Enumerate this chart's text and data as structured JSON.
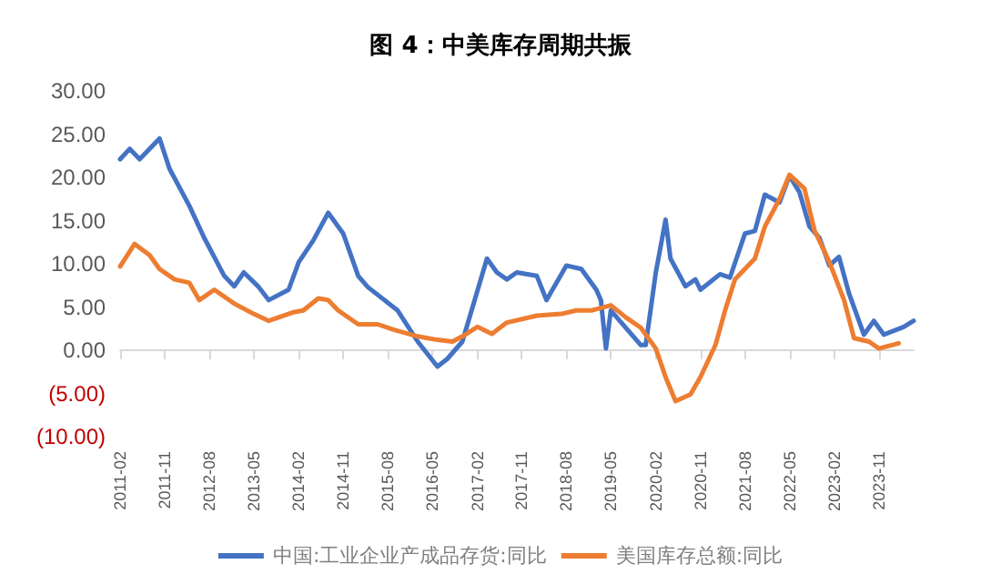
{
  "chart_data": {
    "type": "line",
    "title": "图 4：中美库存周期共振",
    "series": [
      {
        "name": "中国:工业企业产成品存货:同比",
        "color": "#4472c4",
        "x": [
          "2011-02",
          "2011-04",
          "2011-06",
          "2011-10",
          "2011-12",
          "2012-04",
          "2012-07",
          "2012-11",
          "2013-01",
          "2013-03",
          "2013-06",
          "2013-08",
          "2013-12",
          "2014-02",
          "2014-05",
          "2014-08",
          "2014-11",
          "2015-02",
          "2015-04",
          "2015-10",
          "2016-02",
          "2016-06",
          "2016-08",
          "2016-11",
          "2017-04",
          "2017-06",
          "2017-08",
          "2017-10",
          "2018-02",
          "2018-04",
          "2018-08",
          "2018-11",
          "2019-02",
          "2019-03",
          "2019-04",
          "2019-05",
          "2019-08",
          "2019-11",
          "2019-12",
          "2020-02",
          "2020-04",
          "2020-05",
          "2020-08",
          "2020-10",
          "2020-11",
          "2021-03",
          "2021-05",
          "2021-08",
          "2021-10",
          "2021-12",
          "2022-03",
          "2022-05",
          "2022-07",
          "2022-09",
          "2022-11",
          "2023-01",
          "2023-03",
          "2023-05",
          "2023-08",
          "2023-10",
          "2023-12",
          "2024-04",
          "2024-06"
        ],
        "values": [
          22.1,
          23.3,
          22.1,
          24.5,
          21,
          16.7,
          13,
          8.6,
          7.4,
          9,
          7.3,
          5.8,
          7,
          10.2,
          12.7,
          15.9,
          13.5,
          8.6,
          7.3,
          4.6,
          1,
          -1.9,
          -1,
          1,
          10.6,
          9,
          8.2,
          9,
          8.6,
          5.8,
          9.8,
          9.4,
          7,
          5.8,
          0.2,
          4.6,
          2.6,
          0.6,
          0.6,
          9,
          15.1,
          10.6,
          7.4,
          8.2,
          7,
          8.8,
          8.4,
          13.5,
          13.8,
          18,
          17.1,
          20.2,
          18.3,
          14.3,
          13,
          9.8,
          10.8,
          6.6,
          1.8,
          3.4,
          1.8,
          2.7,
          3.4
        ]
      },
      {
        "name": "美国库存总额:同比",
        "color": "#ed7d31",
        "x": [
          "2011-02",
          "2011-05",
          "2011-08",
          "2011-10",
          "2012-01",
          "2012-04",
          "2012-06",
          "2012-09",
          "2013-01",
          "2013-05",
          "2013-08",
          "2013-10",
          "2014-01",
          "2014-03",
          "2014-06",
          "2014-08",
          "2014-10",
          "2015-02",
          "2015-06",
          "2015-09",
          "2016-02",
          "2016-06",
          "2016-09",
          "2016-11",
          "2017-02",
          "2017-05",
          "2017-08",
          "2018-02",
          "2018-07",
          "2018-10",
          "2019-01",
          "2019-05",
          "2019-08",
          "2019-11",
          "2020-02",
          "2020-04",
          "2020-06",
          "2020-09",
          "2020-11",
          "2021-02",
          "2021-04",
          "2021-06",
          "2021-10",
          "2021-12",
          "2022-03",
          "2022-05",
          "2022-08",
          "2022-10",
          "2023-01",
          "2023-04",
          "2023-06",
          "2023-09",
          "2023-11",
          "2024-03"
        ],
        "values": [
          9.7,
          12.3,
          11,
          9.4,
          8.2,
          7.8,
          5.8,
          7,
          5.4,
          4.2,
          3.4,
          3.8,
          4.4,
          4.6,
          6,
          5.8,
          4.6,
          3,
          3,
          2.4,
          1.6,
          1.2,
          1,
          1.6,
          2.7,
          1.9,
          3.2,
          4,
          4.2,
          4.6,
          4.6,
          5.2,
          3.8,
          2.6,
          0.2,
          -3.1,
          -5.9,
          -5.1,
          -3.1,
          0.6,
          4.6,
          8.2,
          10.6,
          14.3,
          17.5,
          20.3,
          18.7,
          13.9,
          10.2,
          5.8,
          1.4,
          1,
          0.2,
          0.8
        ]
      }
    ],
    "xlim": [
      "2011-02",
      "2024-06"
    ],
    "xticks": [
      "2011-02",
      "2011-11",
      "2012-08",
      "2013-05",
      "2014-02",
      "2014-11",
      "2015-08",
      "2016-05",
      "2017-02",
      "2017-11",
      "2018-08",
      "2019-05",
      "2020-02",
      "2020-11",
      "2021-08",
      "2022-05",
      "2023-02",
      "2023-11"
    ],
    "ylim": [
      -10,
      30
    ],
    "yticks": [
      {
        "value": -10,
        "label": "(10.00)"
      },
      {
        "value": -5,
        "label": "(5.00)"
      },
      {
        "value": 0,
        "label": "0.00"
      },
      {
        "value": 5,
        "label": "5.00"
      },
      {
        "value": 10,
        "label": "10.00"
      },
      {
        "value": 15,
        "label": "15.00"
      },
      {
        "value": 20,
        "label": "20.00"
      },
      {
        "value": 25,
        "label": "25.00"
      },
      {
        "value": 30,
        "label": "30.00"
      }
    ],
    "legend": "bottom",
    "marker": "none",
    "line_style": "solid"
  }
}
